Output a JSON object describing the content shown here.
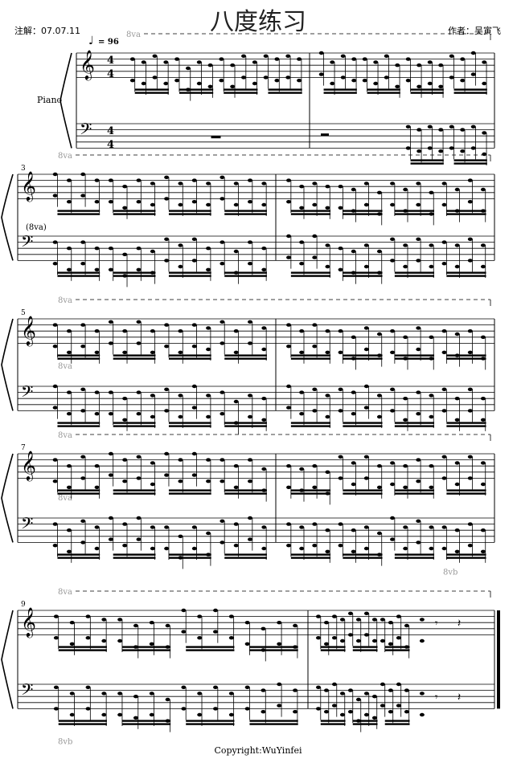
{
  "header": {
    "title": "八度练习",
    "annotation": "注解：07.07.11",
    "composer": "作者：吴寅飞"
  },
  "score": {
    "instrument": "Piano",
    "tempo": "= 96",
    "time_signature": {
      "numerator": "4",
      "denominator": "4"
    },
    "clefs": [
      "treble-clef",
      "bass-clef"
    ],
    "measure_numbers": [
      "3",
      "5",
      "7",
      "9"
    ],
    "ottava_label": "8va",
    "ottava_paren_label": "(8va)",
    "ottava_bassa_label": "8vb",
    "rest_symbol": "𝄾"
  },
  "footer": {
    "copyright": "Copyright:WuYinfei"
  }
}
